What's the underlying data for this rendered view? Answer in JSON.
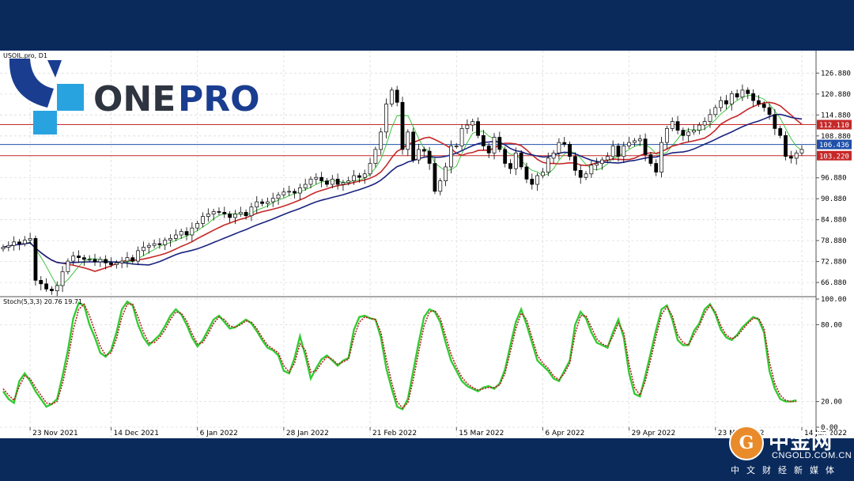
{
  "symbol_label": "USOIL.pro, D1",
  "logo": {
    "text_dark": "ONE",
    "text_blue": "PRO"
  },
  "price_tags": [
    {
      "value": "112.110",
      "color": "#c62828"
    },
    {
      "value": "106.436",
      "color": "#1f4fa8"
    },
    {
      "value": "103.220",
      "color": "#c62828"
    }
  ],
  "price_axis_ticks": [
    "126.880",
    "120.880",
    "114.880",
    "108.880",
    "96.880",
    "90.880",
    "84.880",
    "78.880",
    "72.880",
    "66.880"
  ],
  "stoch_label": "Stoch(5,3,3) 20.76 19.71",
  "stoch_axis_ticks": [
    "100.00",
    "80.00",
    "20.00",
    "0.00"
  ],
  "date_labels": [
    "23 Nov 2021",
    "14 Dec 2021",
    "6 Jan 2022",
    "28 Jan 2022",
    "21 Feb 2022",
    "15 Mar 2022",
    "6 Apr 2022",
    "29 Apr 2022",
    "23 May 2022",
    "14 Jun 2022"
  ],
  "footer_brand": {
    "cn": "中金网",
    "en": "CNGOLD.COM.CN",
    "sub": "中文财经新媒体",
    "mark": "G"
  },
  "colors": {
    "up": "#ffffff",
    "down": "#000000",
    "ma_fast": "#2fbf2f",
    "ma_mid": "#c62828",
    "ma_slow": "#1a237e",
    "stoch_main": "#33cc33",
    "stoch_signal": "#b71c1c",
    "frame": "#0a2a5c",
    "logo_blue": "#29a3e0",
    "logo_navy": "#1a3d8f"
  },
  "chart_data": {
    "type": "line",
    "title": "USOIL.pro, D1",
    "x_labels": [
      "23 Nov 2021",
      "14 Dec 2021",
      "6 Jan 2022",
      "28 Jan 2022",
      "21 Feb 2022",
      "15 Mar 2022",
      "6 Apr 2022",
      "29 Apr 2022",
      "23 May 2022",
      "14 Jun 2022"
    ],
    "x_label_bar_index": [
      5,
      20,
      36,
      52,
      68,
      84,
      100,
      116,
      132,
      148
    ],
    "price_ylim": [
      63.5,
      131.5
    ],
    "price_ticks": [
      126.88,
      120.88,
      114.88,
      108.88,
      96.88,
      90.88,
      84.88,
      78.88,
      72.88,
      66.88
    ],
    "horizontal_levels": [
      112.11,
      106.436,
      103.22
    ],
    "candles_close": [
      77,
      77.5,
      78.5,
      78,
      79,
      79.5,
      67.5,
      66.5,
      65,
      64.5,
      66,
      70,
      73,
      74.5,
      74,
      73.5,
      73.5,
      72.8,
      73.5,
      72.5,
      72,
      72.5,
      73,
      74,
      73,
      76,
      77,
      77.5,
      78,
      77.7,
      79,
      79.5,
      80.5,
      81.5,
      80.5,
      82.5,
      83.8,
      85.8,
      86.5,
      87.2,
      87,
      86.5,
      85.5,
      86.5,
      87,
      86,
      88.5,
      90,
      89.5,
      90,
      91,
      92,
      92.8,
      93,
      92.5,
      94,
      95,
      96.5,
      97,
      96,
      95,
      96.5,
      95,
      95.5,
      96,
      97.5,
      97,
      98,
      101,
      105,
      110,
      118,
      122,
      118.5,
      105,
      110,
      102,
      105,
      104.5,
      101,
      93,
      96,
      100,
      106,
      106,
      111,
      112,
      113,
      109,
      106,
      104,
      108.5,
      105,
      101,
      99.5,
      104,
      100,
      96.5,
      95,
      97.5,
      98.5,
      102.5,
      104,
      107,
      106.5,
      103,
      99,
      97,
      98,
      100.5,
      101,
      102,
      103,
      106,
      103,
      106,
      107,
      107.5,
      108,
      103.5,
      101,
      98.5,
      107,
      111,
      113,
      110.5,
      109,
      110,
      110.5,
      112,
      113,
      115,
      117,
      119,
      118,
      121,
      120,
      122,
      121,
      119,
      118,
      117,
      115,
      111,
      109,
      103,
      102.5,
      104,
      105
    ],
    "stoch_main": [
      28,
      22,
      19,
      36,
      42,
      36,
      28,
      22,
      16,
      18,
      22,
      40,
      60,
      85,
      97,
      95,
      80,
      70,
      58,
      55,
      60,
      74,
      92,
      98,
      95,
      80,
      70,
      64,
      68,
      72,
      79,
      87,
      92,
      88,
      80,
      70,
      63,
      68,
      76,
      84,
      87,
      82,
      77,
      78,
      81,
      84,
      81,
      75,
      68,
      62,
      60,
      56,
      44,
      42,
      54,
      71,
      56,
      38,
      46,
      53,
      56,
      52,
      48,
      52,
      54,
      76,
      86,
      87,
      85,
      84,
      70,
      46,
      30,
      16,
      14,
      22,
      44,
      66,
      86,
      92,
      90,
      82,
      66,
      52,
      44,
      36,
      32,
      30,
      28,
      31,
      32,
      30,
      34,
      45,
      64,
      82,
      92,
      80,
      66,
      52,
      48,
      44,
      38,
      36,
      44,
      52,
      80,
      90,
      85,
      74,
      66,
      64,
      62,
      74,
      84,
      70,
      42,
      26,
      24,
      40,
      58,
      76,
      92,
      95,
      84,
      68,
      64,
      64,
      75,
      81,
      92,
      96,
      88,
      76,
      70,
      68,
      72,
      78,
      82,
      86,
      84,
      74,
      44,
      30,
      22,
      20,
      20,
      21
    ],
    "stoch_signal": [
      30,
      25,
      21,
      32,
      40,
      38,
      31,
      25,
      19,
      18,
      20,
      34,
      53,
      76,
      92,
      96,
      87,
      75,
      63,
      56,
      58,
      69,
      86,
      96,
      96,
      86,
      74,
      66,
      66,
      70,
      76,
      84,
      90,
      89,
      83,
      73,
      65,
      66,
      73,
      81,
      86,
      84,
      79,
      78,
      80,
      83,
      82,
      77,
      70,
      64,
      61,
      58,
      48,
      43,
      50,
      65,
      60,
      43,
      44,
      50,
      55,
      53,
      49,
      51,
      53,
      70,
      82,
      86,
      85,
      84,
      74,
      53,
      35,
      20,
      15,
      19,
      37,
      59,
      79,
      90,
      91,
      85,
      71,
      57,
      47,
      39,
      34,
      31,
      29,
      30,
      31,
      31,
      33,
      42,
      59,
      77,
      89,
      84,
      70,
      56,
      50,
      46,
      40,
      37,
      42,
      50,
      73,
      87,
      87,
      78,
      69,
      65,
      63,
      71,
      81,
      74,
      49,
      31,
      25,
      36,
      53,
      71,
      88,
      94,
      87,
      72,
      66,
      64,
      72,
      79,
      89,
      95,
      90,
      79,
      72,
      69,
      71,
      76,
      81,
      85,
      85,
      77,
      51,
      34,
      25,
      21,
      20,
      20
    ]
  }
}
